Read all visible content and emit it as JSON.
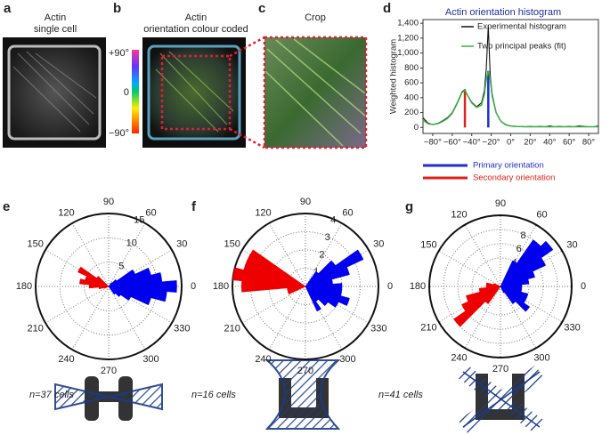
{
  "panel_a": {
    "letter": "a",
    "title": [
      "Actin",
      "single cell"
    ]
  },
  "panel_b": {
    "letter": "b",
    "title": [
      "Actin",
      "orientation colour coded"
    ],
    "colorbar_labels": [
      "+90°",
      "0",
      "−90°"
    ]
  },
  "panel_c": {
    "letter": "c",
    "title": "Crop"
  },
  "chart_data": [
    {
      "type": "line",
      "panel_label": "d",
      "title": "Actin orientation histogram",
      "ylabel": "Weighted histogram",
      "x": [
        -90,
        -85,
        -80,
        -75,
        -70,
        -65,
        -60,
        -55,
        -50,
        -47,
        -45,
        -40,
        -35,
        -30,
        -27,
        -25,
        -23,
        -21,
        -19,
        -15,
        -10,
        -5,
        0,
        5,
        10,
        15,
        20,
        25,
        30,
        35,
        40,
        45,
        50,
        55,
        60,
        65,
        70,
        75,
        80,
        85,
        90
      ],
      "xlim": [
        -90,
        90
      ],
      "xticks": [
        {
          "value": -80,
          "label": "−80°"
        },
        {
          "value": -60,
          "label": "−60°"
        },
        {
          "value": -40,
          "label": "−40°"
        },
        {
          "value": -20,
          "label": "−20°"
        },
        {
          "value": 0,
          "label": "0°"
        },
        {
          "value": 20,
          "label": "20°"
        },
        {
          "value": 40,
          "label": "40°"
        },
        {
          "value": 60,
          "label": "60°"
        },
        {
          "value": 80,
          "label": "80°"
        }
      ],
      "ylim": [
        -80,
        1450
      ],
      "yticks": [
        0,
        200,
        400,
        600,
        800,
        {
          "value": 1000,
          "label": "1,000"
        },
        {
          "value": 1200,
          "label": "1,200"
        },
        {
          "value": 1400,
          "label": "1,400"
        }
      ],
      "series": [
        {
          "name": "Experimental histogram",
          "color": "#111111",
          "values": [
            130,
            60,
            40,
            55,
            90,
            130,
            200,
            330,
            480,
            510,
            450,
            340,
            280,
            330,
            500,
            800,
            1360,
            700,
            450,
            200,
            80,
            40,
            20,
            15,
            15,
            10,
            15,
            10,
            15,
            10,
            20,
            10,
            15,
            10,
            15,
            10,
            20,
            15,
            10,
            10,
            20
          ]
        },
        {
          "name": "Two principal peaks (fit)",
          "color": "#3cb043",
          "values": [
            100,
            50,
            40,
            50,
            80,
            120,
            190,
            320,
            470,
            500,
            450,
            330,
            270,
            300,
            450,
            650,
            760,
            650,
            420,
            200,
            80,
            35,
            20,
            12,
            12,
            10,
            10,
            10,
            10,
            10,
            10,
            10,
            10,
            10,
            10,
            10,
            10,
            10,
            10,
            10,
            10
          ]
        }
      ],
      "orientations": [
        {
          "name": "Primary orientation",
          "x": -23,
          "y": 760,
          "color": "#1f2fd0"
        },
        {
          "name": "Secondary orientation",
          "x": -47,
          "y": 500,
          "color": "#e0201a"
        }
      ]
    },
    {
      "type": "polar",
      "panel_label": "e",
      "caption": "n=37 cells",
      "rlim": [
        0,
        15
      ],
      "rticks": [
        5,
        10,
        15
      ],
      "angle_ticks": [
        90,
        60,
        30,
        0,
        330,
        300,
        270,
        240,
        210,
        180,
        150,
        120
      ],
      "series": [
        {
          "color": "#0000ee",
          "x": [
            -50,
            -40,
            -30,
            -20,
            -10,
            0,
            10,
            20,
            30,
            40,
            50
          ],
          "values": [
            2,
            3,
            5,
            9,
            12,
            14,
            11,
            9,
            6,
            2,
            1
          ]
        },
        {
          "color": "#ee0000",
          "x": [
            140,
            150,
            160,
            170,
            180,
            190,
            200
          ],
          "values": [
            3,
            7,
            5,
            6,
            4,
            2,
            1
          ]
        }
      ]
    },
    {
      "type": "polar",
      "panel_label": "f",
      "caption": "n=16 cells",
      "rlim": [
        0,
        4
      ],
      "rticks": [
        1,
        2,
        3,
        4
      ],
      "angle_ticks": [
        90,
        60,
        30,
        0,
        330,
        300,
        270,
        240,
        210,
        180,
        150,
        120
      ],
      "series": [
        {
          "color": "#0000ee",
          "x": [
            -60,
            -50,
            -40,
            -30,
            -20,
            -10,
            0,
            10,
            20,
            30,
            40,
            50
          ],
          "values": [
            1.5,
            1,
            1.5,
            2,
            2.5,
            2,
            2,
            1.5,
            2.5,
            3.5,
            2,
            1
          ]
        },
        {
          "color": "#ee0000",
          "x": [
            150,
            160,
            170,
            180,
            190,
            200
          ],
          "values": [
            3.5,
            3.5,
            4,
            3.5,
            1,
            1
          ]
        }
      ]
    },
    {
      "type": "polar",
      "panel_label": "g",
      "caption": "n=41 cells",
      "rlim": [
        0,
        10
      ],
      "rticks": [
        4,
        6,
        8
      ],
      "angle_ticks": [
        90,
        60,
        30,
        0,
        330,
        300,
        270,
        240,
        210,
        180,
        150,
        120
      ],
      "series": [
        {
          "color": "#0000ee",
          "x": [
            -60,
            -50,
            -40,
            -30,
            -20,
            -10,
            0,
            10,
            20,
            30,
            40,
            50,
            60
          ],
          "values": [
            1,
            3,
            5,
            4,
            4,
            3,
            3,
            4,
            5,
            7,
            9,
            8,
            4
          ]
        },
        {
          "color": "#ee0000",
          "x": [
            160,
            170,
            180,
            190,
            200,
            210,
            220,
            230
          ],
          "values": [
            1,
            2,
            2,
            3,
            5,
            6,
            8,
            3
          ]
        }
      ]
    }
  ]
}
